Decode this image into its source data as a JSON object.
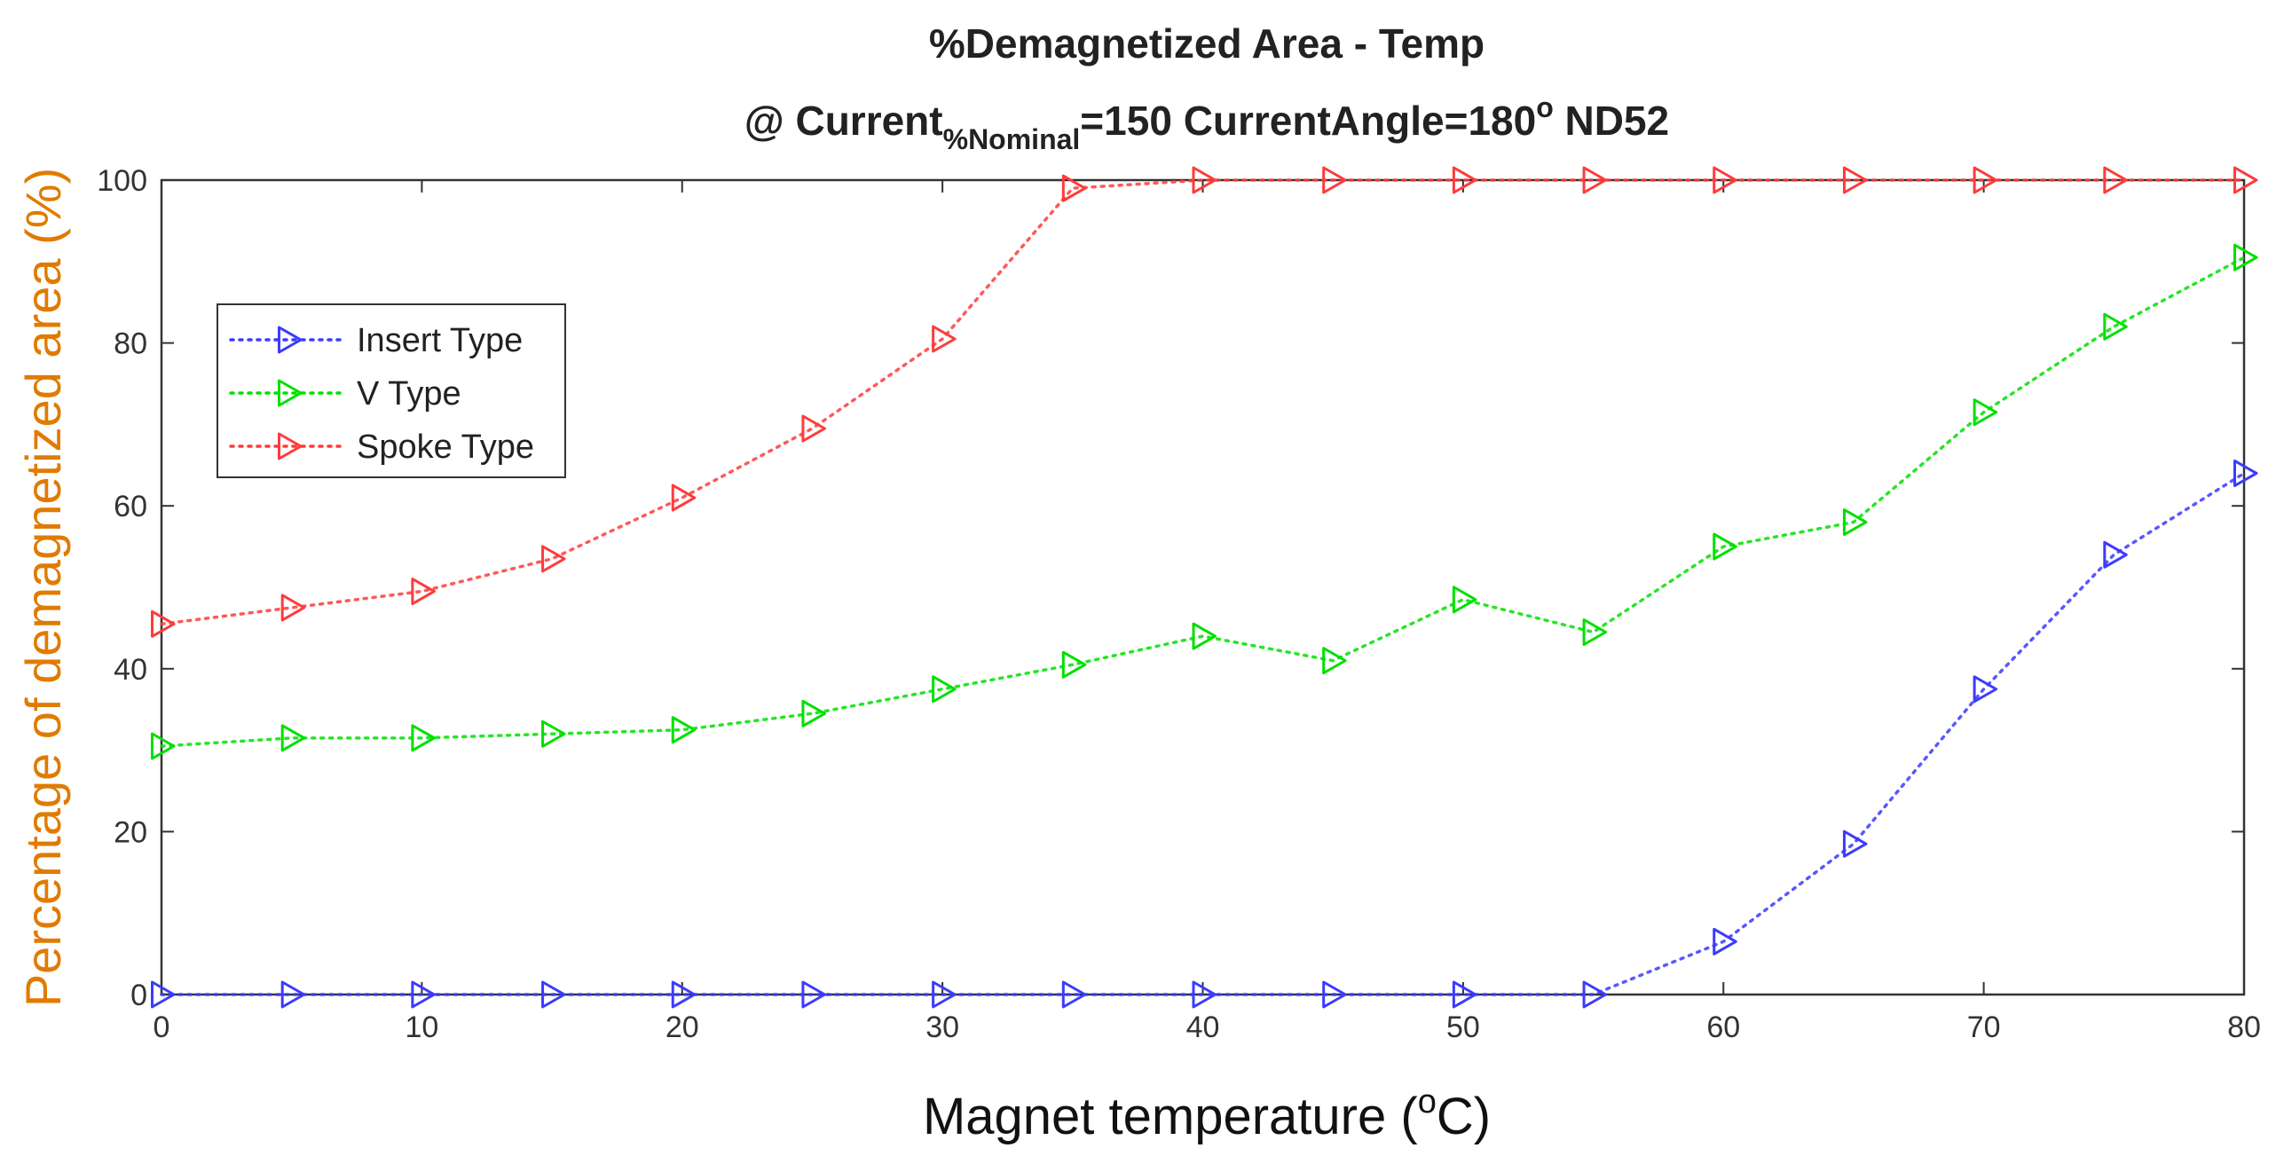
{
  "chart_data": {
    "type": "line",
    "title": "%Demagnetized Area - Temp",
    "subtitle": {
      "prefix": "@ Current",
      "subscript": "%Nominal",
      "middle": "=150 CurrentAngle=180",
      "superscript": "o",
      "suffix": " ND52"
    },
    "xlabel": {
      "prefix": "Magnet temperature (",
      "superscript": "o",
      "suffix": "C)"
    },
    "ylabel": "Percentage of demagnetized area (%)",
    "xlim": [
      0,
      80
    ],
    "ylim": [
      0,
      100
    ],
    "xticks": [
      0,
      10,
      20,
      30,
      40,
      50,
      60,
      70,
      80
    ],
    "yticks": [
      0,
      20,
      40,
      60,
      80,
      100
    ],
    "grid": false,
    "legend_position": "upper-left",
    "x": [
      0,
      5,
      10,
      15,
      20,
      25,
      30,
      35,
      40,
      45,
      50,
      55,
      60,
      65,
      70,
      75,
      80
    ],
    "series": [
      {
        "name": "Insert Type",
        "color": "#3b3bff",
        "marker": "triangle-right",
        "line_style": "dotted",
        "values": [
          0,
          0,
          0,
          0,
          0,
          0,
          0,
          0,
          0,
          0,
          0,
          0,
          6.5,
          18.5,
          37.5,
          54,
          64
        ]
      },
      {
        "name": "V Type",
        "color": "#00e000",
        "marker": "triangle-right",
        "line_style": "dotted",
        "values": [
          30.5,
          31.5,
          31.5,
          32,
          32.5,
          34.5,
          37.5,
          40.5,
          44,
          41,
          48.5,
          44.5,
          55,
          58,
          71.5,
          82,
          90.5
        ]
      },
      {
        "name": "Spoke Type",
        "color": "#ff3b3b",
        "marker": "triangle-right",
        "line_style": "dotted",
        "values": [
          45.5,
          47.5,
          49.5,
          53.5,
          61,
          69.5,
          80.5,
          99,
          100,
          100,
          100,
          100,
          100,
          100,
          100,
          100,
          100
        ]
      }
    ]
  }
}
